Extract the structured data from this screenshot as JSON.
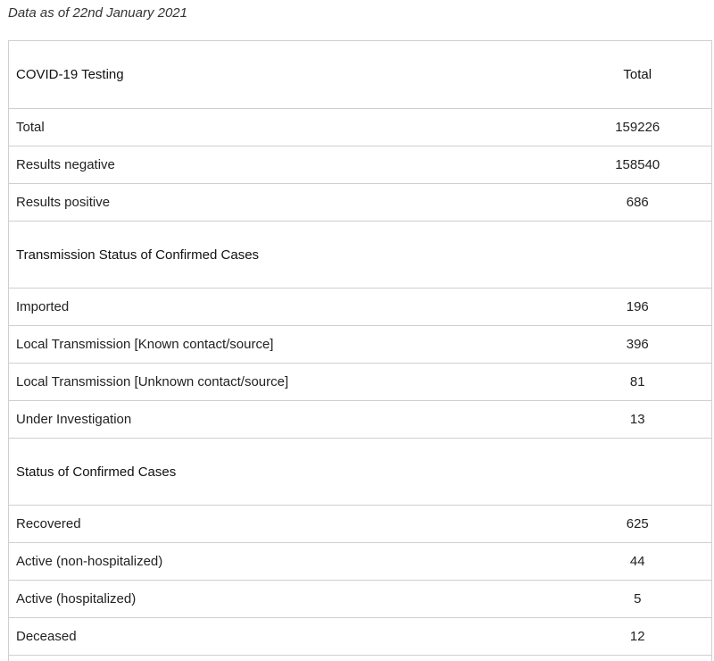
{
  "note": "Data as of 22nd January 2021",
  "header": {
    "label": "COVID-19 Testing",
    "total_label": "Total"
  },
  "testing": [
    {
      "label": "Total",
      "value": "159226"
    },
    {
      "label": "Results negative",
      "value": "158540"
    },
    {
      "label": "Results positive",
      "value": "686"
    }
  ],
  "transmission": {
    "title": "Transmission Status of Confirmed Cases",
    "rows": [
      {
        "label": "Imported",
        "value": "196"
      },
      {
        "label": "Local Transmission [Known contact/source]",
        "value": "396"
      },
      {
        "label": "Local Transmission [Unknown contact/source]",
        "value": "81"
      },
      {
        "label": "Under Investigation",
        "value": "13"
      }
    ]
  },
  "status": {
    "title": "Status of Confirmed Cases",
    "rows": [
      {
        "label": "Recovered",
        "value": "625"
      },
      {
        "label": "Active (non-hospitalized)",
        "value": "44"
      },
      {
        "label": "Active (hospitalized)",
        "value": "5"
      },
      {
        "label": "Deceased",
        "value": "12"
      }
    ]
  }
}
